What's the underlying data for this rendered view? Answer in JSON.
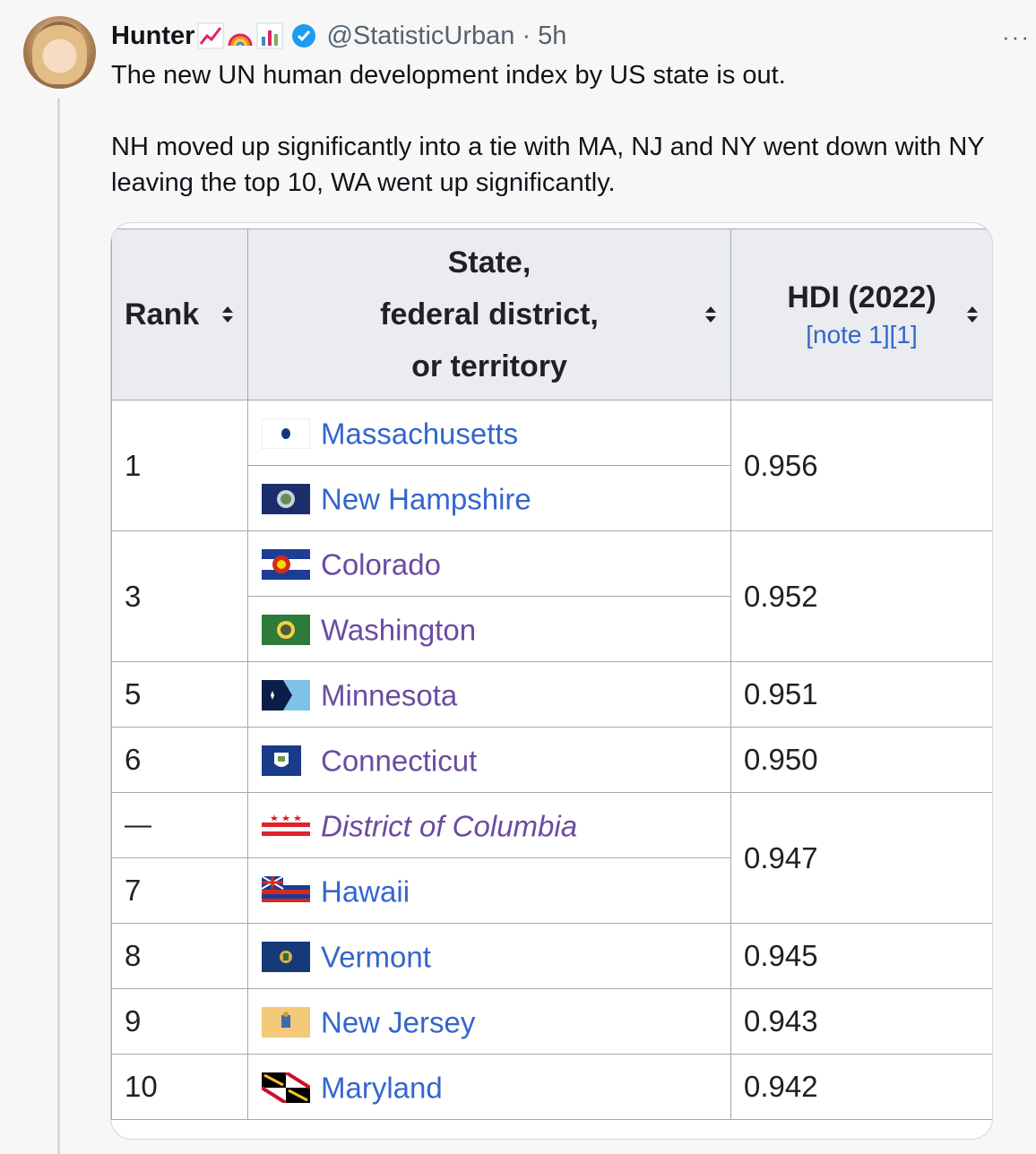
{
  "tweet": {
    "author_name": "Hunter",
    "author_emojis": [
      "chart-increasing-emoji",
      "rainbow-emoji",
      "bar-chart-emoji"
    ],
    "verified": true,
    "handle_time": "@StatisticUrban · 5h",
    "more_label": "···",
    "text_line1": "The new UN human development index by US state is out.",
    "text_line2": "NH moved up significantly into a tie with MA, NJ and NY went down with NY",
    "text_line3": "leaving the top 10, WA went up significantly."
  },
  "table": {
    "headers": {
      "rank": "Rank",
      "state_line1": "State,",
      "state_line2": "federal district,",
      "state_line3": "or territory",
      "hdi": "HDI (2022)",
      "hdi_note": "[note 1][1]"
    },
    "rows": [
      {
        "rank": "1",
        "state": "Massachusetts",
        "hdi": "0.956"
      },
      {
        "state": "New Hampshire"
      },
      {
        "rank": "3",
        "state": "Colorado",
        "hdi": "0.952"
      },
      {
        "state": "Washington"
      },
      {
        "rank": "5",
        "state": "Minnesota",
        "hdi": "0.951"
      },
      {
        "rank": "6",
        "state": "Connecticut",
        "hdi": "0.950"
      },
      {
        "rank": "—",
        "state": "District of Columbia",
        "hdi": "0.947"
      },
      {
        "rank": "7",
        "state": "Hawaii"
      },
      {
        "rank": "8",
        "state": "Vermont",
        "hdi": "0.945"
      },
      {
        "rank": "9",
        "state": "New Jersey",
        "hdi": "0.943"
      },
      {
        "rank": "10",
        "state": "Maryland",
        "hdi": "0.942"
      }
    ]
  },
  "colors": {
    "link": "#3366cc",
    "visited_link": "#6b4ba1",
    "header_bg": "#eaecf0",
    "border": "#a2a9b1",
    "verified": "#1d9bf0"
  }
}
